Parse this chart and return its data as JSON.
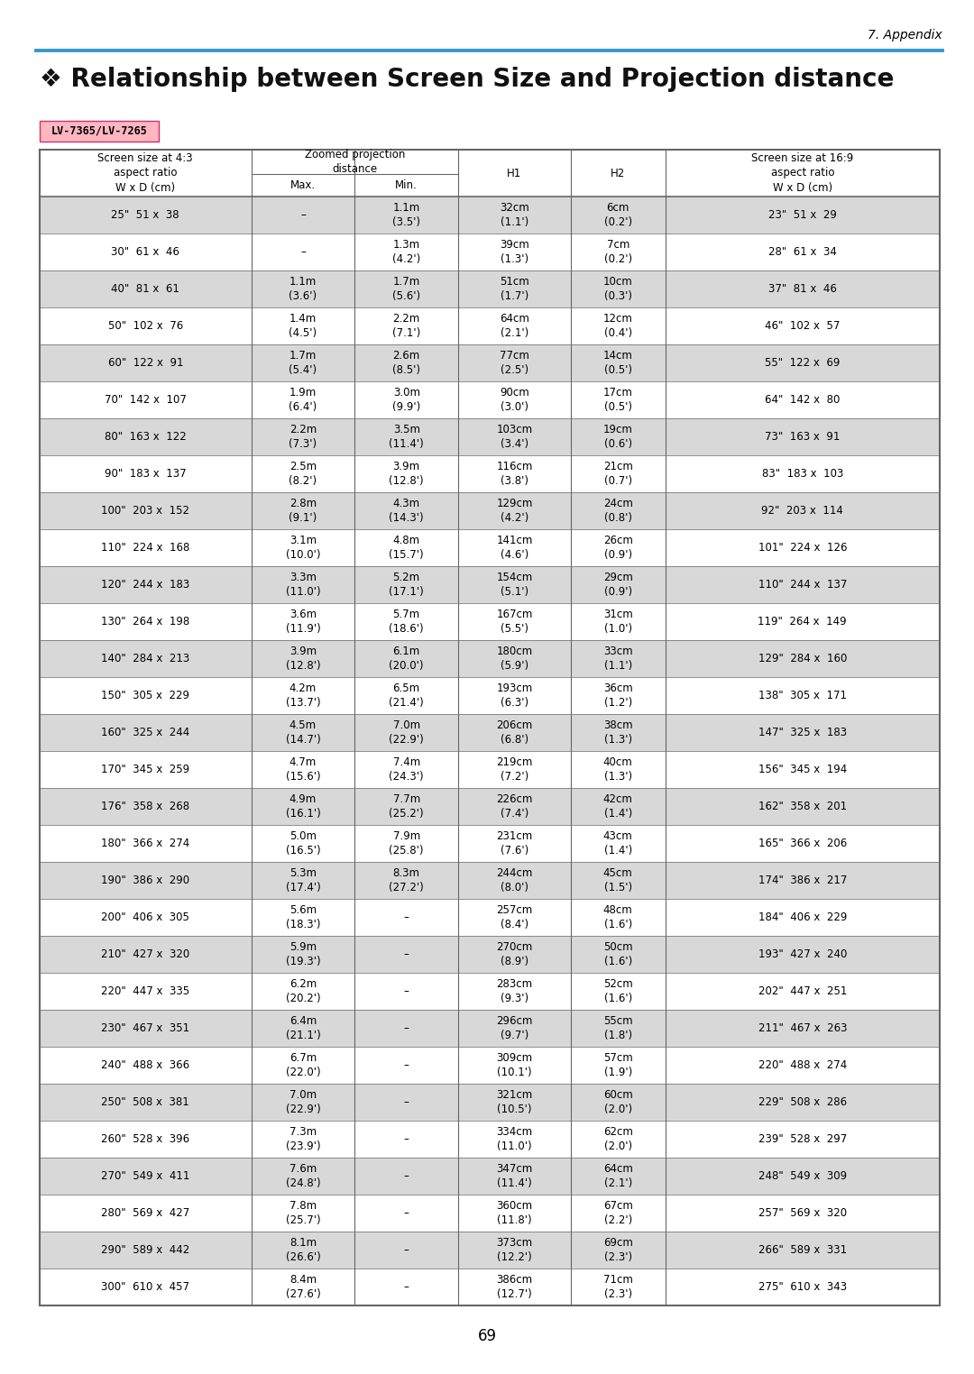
{
  "page_label": "7. Appendix",
  "title": "❖ Relationship between Screen Size and Projection distance",
  "subtitle_label": "LV-7365/LV-7265",
  "subtitle_label_bg": "#FFB6C1",
  "subtitle_label_border": "#CC3366",
  "header_bg": "#ffffff",
  "row_bg_odd": "#d8d8d8",
  "row_bg_even": "#ffffff",
  "rows": [
    [
      "25\"  51 x  38",
      "–",
      "1.1m\n(3.5')",
      "32cm\n(1.1')",
      "6cm\n(0.2')",
      "23\"  51 x  29"
    ],
    [
      "30\"  61 x  46",
      "–",
      "1.3m\n(4.2')",
      "39cm\n(1.3')",
      "7cm\n(0.2')",
      "28\"  61 x  34"
    ],
    [
      "40\"  81 x  61",
      "1.1m\n(3.6')",
      "1.7m\n(5.6')",
      "51cm\n(1.7')",
      "10cm\n(0.3')",
      "37\"  81 x  46"
    ],
    [
      "50\"  102 x  76",
      "1.4m\n(4.5')",
      "2.2m\n(7.1')",
      "64cm\n(2.1')",
      "12cm\n(0.4')",
      "46\"  102 x  57"
    ],
    [
      "60\"  122 x  91",
      "1.7m\n(5.4')",
      "2.6m\n(8.5')",
      "77cm\n(2.5')",
      "14cm\n(0.5')",
      "55\"  122 x  69"
    ],
    [
      "70\"  142 x  107",
      "1.9m\n(6.4')",
      "3.0m\n(9.9')",
      "90cm\n(3.0')",
      "17cm\n(0.5')",
      "64\"  142 x  80"
    ],
    [
      "80\"  163 x  122",
      "2.2m\n(7.3')",
      "3.5m\n(11.4')",
      "103cm\n(3.4')",
      "19cm\n(0.6')",
      "73\"  163 x  91"
    ],
    [
      "90\"  183 x  137",
      "2.5m\n(8.2')",
      "3.9m\n(12.8')",
      "116cm\n(3.8')",
      "21cm\n(0.7')",
      "83\"  183 x  103"
    ],
    [
      "100\"  203 x  152",
      "2.8m\n(9.1')",
      "4.3m\n(14.3')",
      "129cm\n(4.2')",
      "24cm\n(0.8')",
      "92\"  203 x  114"
    ],
    [
      "110\"  224 x  168",
      "3.1m\n(10.0')",
      "4.8m\n(15.7')",
      "141cm\n(4.6')",
      "26cm\n(0.9')",
      "101\"  224 x  126"
    ],
    [
      "120\"  244 x  183",
      "3.3m\n(11.0')",
      "5.2m\n(17.1')",
      "154cm\n(5.1')",
      "29cm\n(0.9')",
      "110\"  244 x  137"
    ],
    [
      "130\"  264 x  198",
      "3.6m\n(11.9')",
      "5.7m\n(18.6')",
      "167cm\n(5.5')",
      "31cm\n(1.0')",
      "119\"  264 x  149"
    ],
    [
      "140\"  284 x  213",
      "3.9m\n(12.8')",
      "6.1m\n(20.0')",
      "180cm\n(5.9')",
      "33cm\n(1.1')",
      "129\"  284 x  160"
    ],
    [
      "150\"  305 x  229",
      "4.2m\n(13.7')",
      "6.5m\n(21.4')",
      "193cm\n(6.3')",
      "36cm\n(1.2')",
      "138\"  305 x  171"
    ],
    [
      "160\"  325 x  244",
      "4.5m\n(14.7')",
      "7.0m\n(22.9')",
      "206cm\n(6.8')",
      "38cm\n(1.3')",
      "147\"  325 x  183"
    ],
    [
      "170\"  345 x  259",
      "4.7m\n(15.6')",
      "7.4m\n(24.3')",
      "219cm\n(7.2')",
      "40cm\n(1.3')",
      "156\"  345 x  194"
    ],
    [
      "176\"  358 x  268",
      "4.9m\n(16.1')",
      "7.7m\n(25.2')",
      "226cm\n(7.4')",
      "42cm\n(1.4')",
      "162\"  358 x  201"
    ],
    [
      "180\"  366 x  274",
      "5.0m\n(16.5')",
      "7.9m\n(25.8')",
      "231cm\n(7.6')",
      "43cm\n(1.4')",
      "165\"  366 x  206"
    ],
    [
      "190\"  386 x  290",
      "5.3m\n(17.4')",
      "8.3m\n(27.2')",
      "244cm\n(8.0')",
      "45cm\n(1.5')",
      "174\"  386 x  217"
    ],
    [
      "200\"  406 x  305",
      "5.6m\n(18.3')",
      "–",
      "257cm\n(8.4')",
      "48cm\n(1.6')",
      "184\"  406 x  229"
    ],
    [
      "210\"  427 x  320",
      "5.9m\n(19.3')",
      "–",
      "270cm\n(8.9')",
      "50cm\n(1.6')",
      "193\"  427 x  240"
    ],
    [
      "220\"  447 x  335",
      "6.2m\n(20.2')",
      "–",
      "283cm\n(9.3')",
      "52cm\n(1.6')",
      "202\"  447 x  251"
    ],
    [
      "230\"  467 x  351",
      "6.4m\n(21.1')",
      "–",
      "296cm\n(9.7')",
      "55cm\n(1.8')",
      "211\"  467 x  263"
    ],
    [
      "240\"  488 x  366",
      "6.7m\n(22.0')",
      "–",
      "309cm\n(10.1')",
      "57cm\n(1.9')",
      "220\"  488 x  274"
    ],
    [
      "250\"  508 x  381",
      "7.0m\n(22.9')",
      "–",
      "321cm\n(10.5')",
      "60cm\n(2.0')",
      "229\"  508 x  286"
    ],
    [
      "260\"  528 x  396",
      "7.3m\n(23.9')",
      "–",
      "334cm\n(11.0')",
      "62cm\n(2.0')",
      "239\"  528 x  297"
    ],
    [
      "270\"  549 x  411",
      "7.6m\n(24.8')",
      "–",
      "347cm\n(11.4')",
      "64cm\n(2.1')",
      "248\"  549 x  309"
    ],
    [
      "280\"  569 x  427",
      "7.8m\n(25.7')",
      "–",
      "360cm\n(11.8')",
      "67cm\n(2.2')",
      "257\"  569 x  320"
    ],
    [
      "290\"  589 x  442",
      "8.1m\n(26.6')",
      "–",
      "373cm\n(12.2')",
      "69cm\n(2.3')",
      "266\"  589 x  331"
    ],
    [
      "300\"  610 x  457",
      "8.4m\n(27.6')",
      "–",
      "386cm\n(12.7')",
      "71cm\n(2.3')",
      "275\"  610 x  343"
    ]
  ],
  "background_color": "#ffffff",
  "page_number": "69",
  "top_rule_color": "#3399CC",
  "table_border_color": "#666666",
  "font_size_title": 20,
  "font_size_table": 8.5,
  "font_size_header": 8.5
}
